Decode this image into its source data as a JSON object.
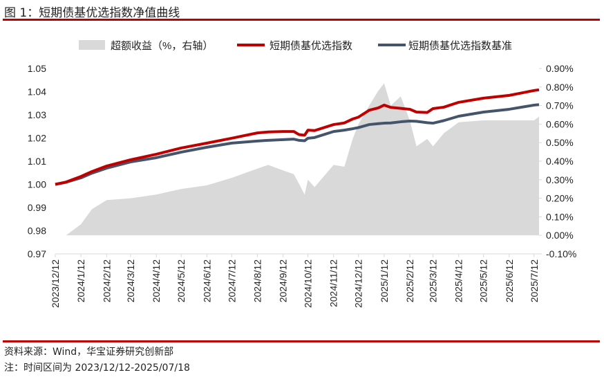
{
  "header": {
    "title": "图 1：短期债基优选指数净值曲线"
  },
  "footer": {
    "source": "资料来源：Wind，华宝证券研究创新部",
    "note": "注：时间区间为 2023/12/12-2025/07/18"
  },
  "colors": {
    "rule": "#c00000",
    "index": "#c00000",
    "benchmark": "#44546a",
    "area": "#d9d9d9"
  },
  "chart_data": {
    "type": "line+area",
    "title": "短期债基优选指数净值曲线",
    "legend": [
      "超额收益（%，右轴）",
      "短期债基优选指数",
      "短期债基优选指数基准"
    ],
    "legend_position": "top",
    "left_axis": {
      "ylim": [
        0.97,
        1.05
      ],
      "ticks": [
        "0.97",
        "0.98",
        "0.99",
        "1.00",
        "1.01",
        "1.02",
        "1.03",
        "1.04",
        "1.05"
      ]
    },
    "right_axis": {
      "ylim": [
        -0.1,
        0.9
      ],
      "ticks": [
        "-0.10%",
        "0.00%",
        "0.10%",
        "0.20%",
        "0.30%",
        "0.40%",
        "0.50%",
        "0.60%",
        "0.70%",
        "0.80%",
        "0.90%"
      ]
    },
    "x_ticks": [
      "2023/12/12",
      "2024/1/12",
      "2024/2/12",
      "2024/3/12",
      "2024/4/12",
      "2024/5/12",
      "2024/6/12",
      "2024/7/12",
      "2024/8/12",
      "2024/9/12",
      "2024/10/12",
      "2024/11/12",
      "2024/12/12",
      "2025/1/12",
      "2025/2/12",
      "2025/3/12",
      "2025/4/12",
      "2025/5/12",
      "2025/6/12",
      "2025/7/12"
    ],
    "x_range": [
      "2023-12-12",
      "2025-07-18"
    ],
    "grid": false,
    "series": {
      "dates": [
        "2023-12-12",
        "2023-12-25",
        "2024-01-12",
        "2024-01-25",
        "2024-02-12",
        "2024-03-12",
        "2024-04-12",
        "2024-05-12",
        "2024-06-12",
        "2024-07-12",
        "2024-08-12",
        "2024-08-25",
        "2024-09-12",
        "2024-09-25",
        "2024-10-01",
        "2024-10-08",
        "2024-10-12",
        "2024-10-20",
        "2024-11-12",
        "2024-11-25",
        "2024-12-05",
        "2024-12-12",
        "2024-12-25",
        "2025-01-05",
        "2025-01-12",
        "2025-01-20",
        "2025-02-01",
        "2025-02-12",
        "2025-02-20",
        "2025-03-05",
        "2025-03-12",
        "2025-03-25",
        "2025-04-12",
        "2025-05-12",
        "2025-06-12",
        "2025-07-12",
        "2025-07-18"
      ],
      "index": [
        1.0,
        1.001,
        1.0034,
        1.0055,
        1.0079,
        1.0106,
        1.013,
        1.0157,
        1.0178,
        1.0199,
        1.0222,
        1.0226,
        1.0228,
        1.0228,
        1.0215,
        1.0212,
        1.0234,
        1.0232,
        1.0258,
        1.0265,
        1.0282,
        1.029,
        1.032,
        1.033,
        1.0342,
        1.0332,
        1.0328,
        1.0324,
        1.0312,
        1.031,
        1.0327,
        1.0333,
        1.0354,
        1.0372,
        1.0384,
        1.0405,
        1.0408
      ],
      "benchmark": [
        1.0,
        1.0009,
        1.0028,
        1.0048,
        1.007,
        1.0097,
        1.0115,
        1.0139,
        1.016,
        1.0178,
        1.0187,
        1.019,
        1.0193,
        1.0195,
        1.019,
        1.0188,
        1.0199,
        1.0202,
        1.0228,
        1.0234,
        1.024,
        1.0245,
        1.0258,
        1.0262,
        1.0264,
        1.0265,
        1.027,
        1.0273,
        1.0272,
        1.0266,
        1.0264,
        1.0275,
        1.0294,
        1.0312,
        1.0324,
        1.0342,
        1.0344
      ],
      "excess_pct": [
        0.0,
        0.0,
        0.06,
        0.14,
        0.19,
        0.2,
        0.22,
        0.25,
        0.27,
        0.31,
        0.36,
        0.38,
        0.35,
        0.33,
        0.28,
        0.22,
        0.3,
        0.26,
        0.38,
        0.37,
        0.52,
        0.6,
        0.7,
        0.78,
        0.82,
        0.7,
        0.75,
        0.62,
        0.48,
        0.52,
        0.48,
        0.55,
        0.61,
        0.62,
        0.62,
        0.62,
        0.64
      ]
    }
  }
}
